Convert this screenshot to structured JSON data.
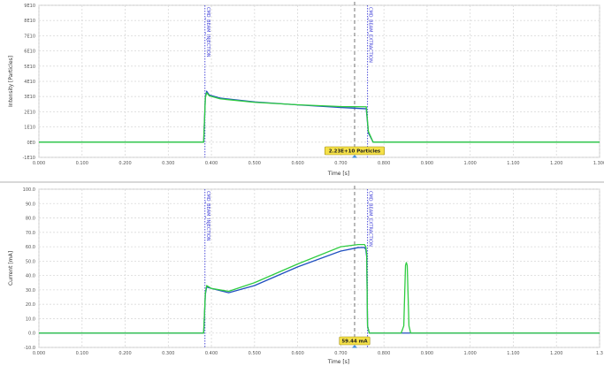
{
  "chart_data": [
    {
      "type": "line",
      "title": "",
      "ylabel": "Intensity [Particles]",
      "xlabel": "Time [s]",
      "xlim": [
        0,
        1.3
      ],
      "ylim": [
        -10000000000.0,
        90000000000.0
      ],
      "x_ticks": [
        0,
        0.1,
        0.2,
        0.3,
        0.4,
        0.5,
        0.6,
        0.7,
        0.8,
        0.9,
        1.0,
        1.1,
        1.2,
        1.3
      ],
      "x_tick_labels": [
        "0.000",
        "0.100",
        "0.200",
        "0.300",
        "0.400",
        "0.500",
        "0.600",
        "0.700",
        "0.800",
        "0.900",
        "1.000",
        "1.100",
        "1.200",
        "1.300"
      ],
      "y_ticks": [
        -10000000000.0,
        0,
        10000000000.0,
        20000000000.0,
        30000000000.0,
        40000000000.0,
        50000000000.0,
        60000000000.0,
        70000000000.0,
        80000000000.0,
        90000000000.0
      ],
      "y_tick_labels": [
        "-1E10",
        "0E0",
        "1E10",
        "2E10",
        "3E10",
        "4E10",
        "5E10",
        "6E10",
        "7E10",
        "8E10",
        "9E10"
      ],
      "grid": true,
      "events": [
        {
          "x": 0.385,
          "label": "CMD_BEAM_INJECTION"
        },
        {
          "x": 0.762,
          "label": "CMD_BEAM_EXTRACTION"
        }
      ],
      "cursor": {
        "x": 0.732,
        "label": "2.23E+10 Particles"
      },
      "series": [
        {
          "color": "#1f4fbf",
          "x": [
            0,
            0.382,
            0.386,
            0.389,
            0.395,
            0.42,
            0.5,
            0.6,
            0.7,
            0.755,
            0.759,
            0.764,
            0.775,
            1.3
          ],
          "y": [
            0,
            0,
            30000000000.0,
            33500000000.0,
            31000000000.0,
            29000000000.0,
            26500000000.0,
            24500000000.0,
            22800000000.0,
            22000000000.0,
            22000000000.0,
            6000000000.0,
            0,
            0
          ]
        },
        {
          "color": "#2ecc40",
          "x": [
            0,
            0.382,
            0.386,
            0.389,
            0.395,
            0.42,
            0.5,
            0.6,
            0.7,
            0.755,
            0.759,
            0.764,
            0.775,
            1.3
          ],
          "y": [
            0,
            0,
            29500000000.0,
            32500000000.0,
            30500000000.0,
            28500000000.0,
            26200000000.0,
            24600000000.0,
            23400000000.0,
            23300000000.0,
            23300000000.0,
            7000000000.0,
            0,
            0
          ]
        }
      ]
    },
    {
      "type": "line",
      "title": "",
      "ylabel": "Current [mA]",
      "xlabel": "Time [s]",
      "xlim": [
        0,
        1.3
      ],
      "ylim": [
        -10,
        100
      ],
      "x_ticks": [
        0,
        0.1,
        0.2,
        0.3,
        0.4,
        0.5,
        0.6,
        0.7,
        0.8,
        0.9,
        1.0,
        1.1,
        1.2,
        1.3
      ],
      "x_tick_labels": [
        "0.000",
        "0.100",
        "0.200",
        "0.300",
        "0.400",
        "0.500",
        "0.600",
        "0.700",
        "0.800",
        "0.900",
        "1.000",
        "1.100",
        "1.200",
        "1.3"
      ],
      "y_ticks": [
        -10,
        0,
        10,
        20,
        30,
        40,
        50,
        60,
        70,
        80,
        90,
        100
      ],
      "y_tick_labels": [
        "-10.0",
        "0.0",
        "10.0",
        "20.0",
        "30.0",
        "40.0",
        "50.0",
        "60.0",
        "70.0",
        "80.0",
        "90.0",
        "100.0"
      ],
      "grid": true,
      "events": [
        {
          "x": 0.385,
          "label": "CMD_BEAM_INJECTION"
        },
        {
          "x": 0.762,
          "label": "CMD_BEAM_EXTRACTION"
        }
      ],
      "cursor": {
        "x": 0.732,
        "label": "59.44 mA"
      },
      "series": [
        {
          "color": "#1f4fbf",
          "x": [
            0,
            0.382,
            0.386,
            0.389,
            0.4,
            0.44,
            0.5,
            0.6,
            0.7,
            0.74,
            0.755,
            0.758,
            0.76,
            0.762,
            0.766,
            0.8,
            1.3
          ],
          "y": [
            0,
            0,
            27,
            32,
            31,
            28,
            33,
            46,
            57,
            59.4,
            59.5,
            58,
            53,
            5,
            0,
            0,
            0
          ]
        },
        {
          "color": "#2ecc40",
          "x": [
            0,
            0.382,
            0.386,
            0.389,
            0.4,
            0.44,
            0.5,
            0.6,
            0.7,
            0.74,
            0.755,
            0.758,
            0.76,
            0.762,
            0.766,
            0.84,
            0.846,
            0.85,
            0.852,
            0.854,
            0.858,
            0.862,
            1.3
          ],
          "y": [
            0,
            0,
            28,
            33,
            31,
            29,
            35,
            48,
            60,
            61.5,
            61.5,
            60,
            55,
            5,
            0,
            0,
            5,
            47,
            49,
            47,
            5,
            0,
            0
          ]
        }
      ]
    }
  ]
}
